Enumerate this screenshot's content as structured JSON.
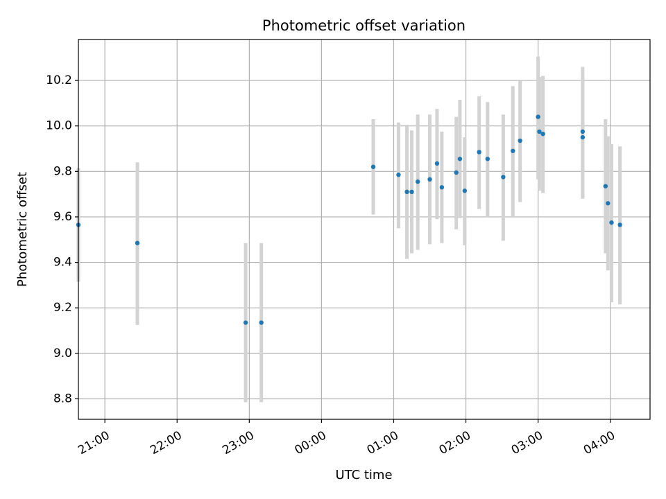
{
  "chart_data": {
    "type": "scatter",
    "title": "Photometric offset variation",
    "xlabel": "UTC time",
    "ylabel": "Photometric offset",
    "x_axis": "time",
    "xlim": [
      "20:38",
      "04:33"
    ],
    "ylim": [
      8.71,
      10.38
    ],
    "grid": true,
    "point_color": "#1f77b4",
    "errorbar_color": "#d3d3d3",
    "x_tick_labels": [
      "21:00",
      "22:00",
      "23:00",
      "00:00",
      "01:00",
      "02:00",
      "03:00",
      "04:00"
    ],
    "x_tick_values": [
      "21:00",
      "22:00",
      "23:00",
      "00:00",
      "01:00",
      "02:00",
      "03:00",
      "04:00"
    ],
    "y_ticks": [
      8.8,
      9.0,
      9.2,
      9.4,
      9.6,
      9.8,
      10.0,
      10.2
    ],
    "y_tick_labels": [
      "8.8",
      "9.0",
      "9.2",
      "9.4",
      "9.6",
      "9.8",
      "10.0",
      "10.2"
    ],
    "points": [
      {
        "x": "20:38",
        "y": 9.565,
        "ylo": 9.315,
        "yhi": 9.815
      },
      {
        "x": "21:27",
        "y": 9.485,
        "ylo": 9.125,
        "yhi": 9.84
      },
      {
        "x": "22:57",
        "y": 9.135,
        "ylo": 8.785,
        "yhi": 9.485
      },
      {
        "x": "23:10",
        "y": 9.135,
        "ylo": 8.785,
        "yhi": 9.485
      },
      {
        "x": "00:43",
        "y": 9.82,
        "ylo": 9.61,
        "yhi": 10.03
      },
      {
        "x": "01:04",
        "y": 9.785,
        "ylo": 9.55,
        "yhi": 10.015
      },
      {
        "x": "01:11",
        "y": 9.71,
        "ylo": 9.415,
        "yhi": 10.005
      },
      {
        "x": "01:15",
        "y": 9.71,
        "ylo": 9.44,
        "yhi": 9.98
      },
      {
        "x": "01:20",
        "y": 9.755,
        "ylo": 9.455,
        "yhi": 10.05
      },
      {
        "x": "01:30",
        "y": 9.765,
        "ylo": 9.48,
        "yhi": 10.05
      },
      {
        "x": "01:36",
        "y": 9.835,
        "ylo": 9.59,
        "yhi": 10.075
      },
      {
        "x": "01:40",
        "y": 9.73,
        "ylo": 9.485,
        "yhi": 9.975
      },
      {
        "x": "01:52",
        "y": 9.795,
        "ylo": 9.545,
        "yhi": 10.04
      },
      {
        "x": "01:55",
        "y": 9.855,
        "ylo": 9.595,
        "yhi": 10.115
      },
      {
        "x": "01:59",
        "y": 9.715,
        "ylo": 9.475,
        "yhi": 9.95
      },
      {
        "x": "02:11",
        "y": 9.885,
        "ylo": 9.635,
        "yhi": 10.13
      },
      {
        "x": "02:18",
        "y": 9.855,
        "ylo": 9.6,
        "yhi": 10.105
      },
      {
        "x": "02:31",
        "y": 9.775,
        "ylo": 9.495,
        "yhi": 10.05
      },
      {
        "x": "02:39",
        "y": 9.89,
        "ylo": 9.6,
        "yhi": 10.175
      },
      {
        "x": "02:45",
        "y": 9.935,
        "ylo": 9.665,
        "yhi": 10.2
      },
      {
        "x": "03:00",
        "y": 10.04,
        "ylo": 9.765,
        "yhi": 10.305
      },
      {
        "x": "03:01",
        "y": 9.975,
        "ylo": 9.715,
        "yhi": 10.215
      },
      {
        "x": "03:04",
        "y": 9.965,
        "ylo": 9.705,
        "yhi": 10.22
      },
      {
        "x": "03:37",
        "y": 9.975,
        "ylo": 9.68,
        "yhi": 10.26
      },
      {
        "x": "03:37",
        "y": 9.95,
        "ylo": 9.685,
        "yhi": 10.22
      },
      {
        "x": "03:56",
        "y": 9.735,
        "ylo": 9.44,
        "yhi": 10.03
      },
      {
        "x": "03:58",
        "y": 9.66,
        "ylo": 9.365,
        "yhi": 9.955
      },
      {
        "x": "04:01",
        "y": 9.575,
        "ylo": 9.225,
        "yhi": 9.92
      },
      {
        "x": "04:08",
        "y": 9.565,
        "ylo": 9.215,
        "yhi": 9.91
      }
    ]
  }
}
